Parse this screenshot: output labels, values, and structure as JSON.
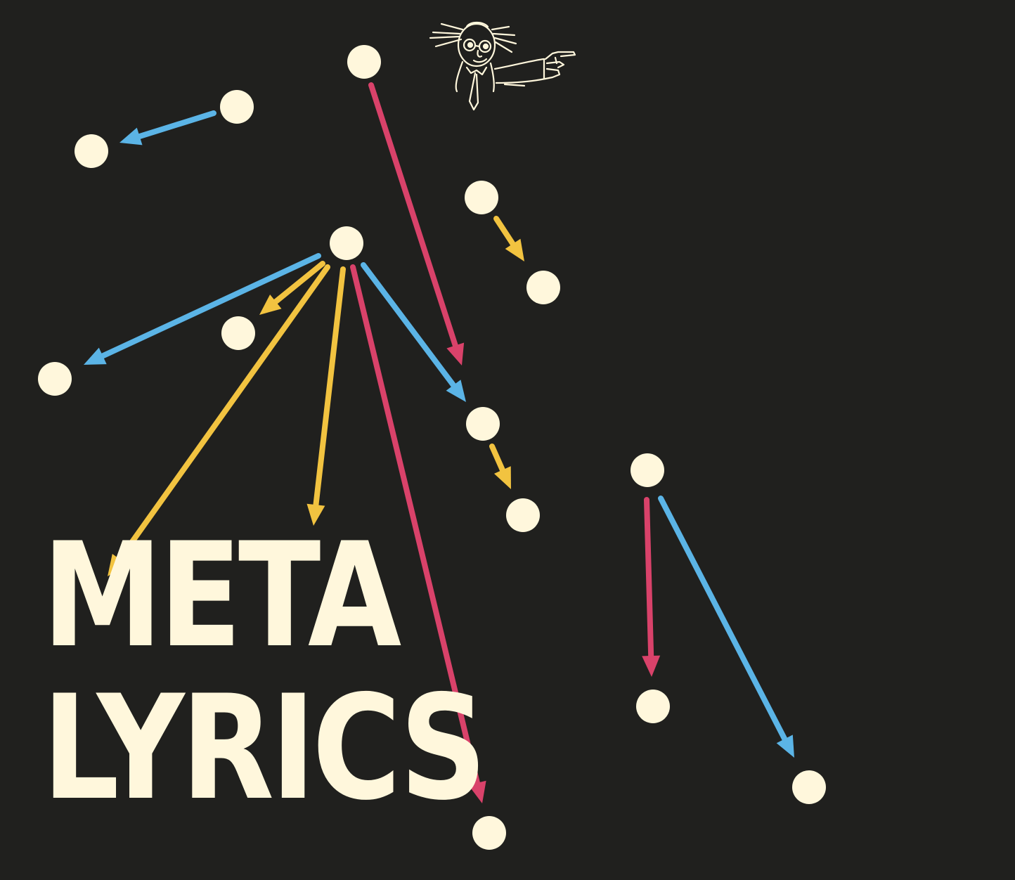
{
  "title": {
    "line1": "META",
    "line2": "LYRICS"
  },
  "colors": {
    "background": "#20201e",
    "node": "#fff7dc",
    "title": "#fff7dc",
    "red": "#d9426a",
    "blue": "#5bb4e6",
    "yellow": "#f2c340"
  },
  "mascot": {
    "icon": "pointing-professor-icon"
  },
  "nodes": [
    {
      "id": "n1"
    },
    {
      "id": "n2"
    },
    {
      "id": "n3"
    },
    {
      "id": "n4"
    },
    {
      "id": "n5"
    },
    {
      "id": "n6"
    },
    {
      "id": "n7"
    },
    {
      "id": "n8"
    },
    {
      "id": "n9"
    },
    {
      "id": "n10"
    },
    {
      "id": "n11"
    },
    {
      "id": "n12"
    },
    {
      "id": "n13"
    },
    {
      "id": "n14"
    },
    {
      "id": "n15"
    }
  ],
  "edges": [
    {
      "from": "n1",
      "to": "n9",
      "color": "red"
    },
    {
      "from": "n2",
      "to": "n3",
      "color": "blue"
    },
    {
      "from": "n4",
      "to": "n5",
      "color": "yellow"
    },
    {
      "from": "n6",
      "to": "n7",
      "color": "yellow"
    },
    {
      "from": "n6",
      "to": "n8",
      "color": "blue"
    },
    {
      "from": "n6",
      "to": "n16",
      "color": "yellow"
    },
    {
      "from": "n6",
      "to": "n17",
      "color": "yellow"
    },
    {
      "from": "n6",
      "to": "n13",
      "color": "red"
    },
    {
      "from": "n6",
      "to": "n9",
      "color": "blue"
    },
    {
      "from": "n9",
      "to": "n10",
      "color": "yellow"
    },
    {
      "from": "n11",
      "to": "n12",
      "color": "red"
    },
    {
      "from": "n11",
      "to": "n14",
      "color": "blue"
    }
  ]
}
